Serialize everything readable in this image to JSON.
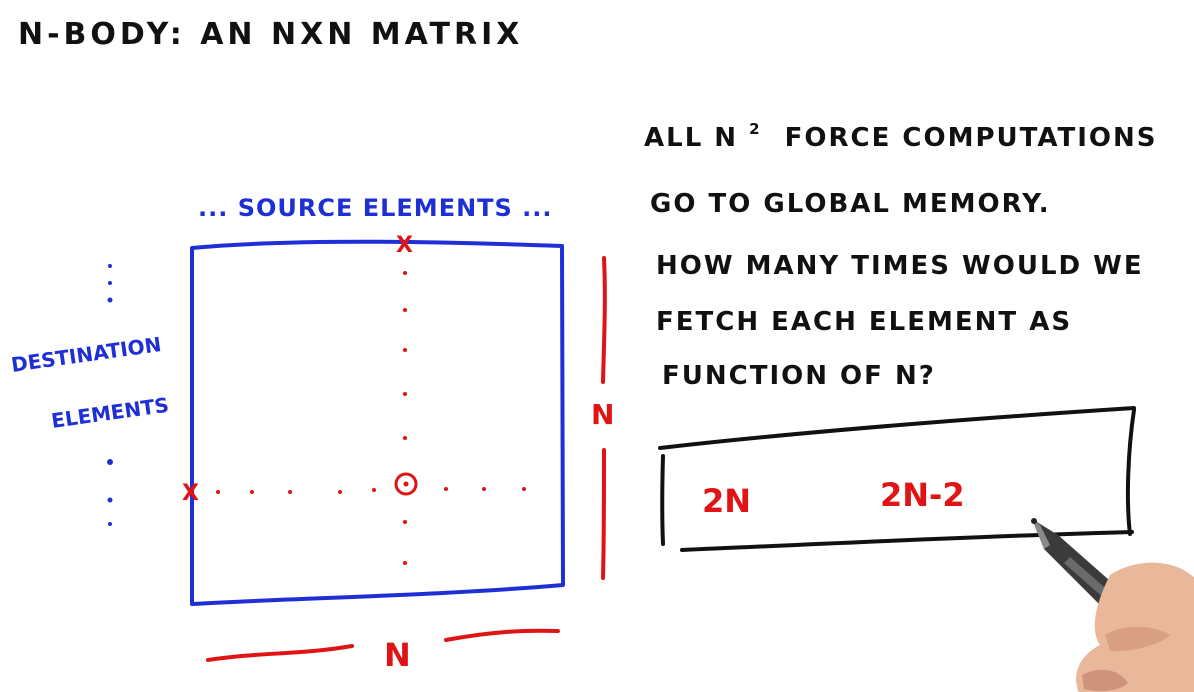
{
  "title": "N-BODY: AN NXN MATRIX",
  "matrix": {
    "top_label": "... SOURCE ELEMENTS ...",
    "left_label_line1": "DESTINATION",
    "left_label_line2": "ELEMENTS",
    "right_label": "N",
    "bottom_label": "N",
    "source_marker": "x",
    "dest_marker": "x"
  },
  "question": {
    "line1_pre": "ALL N",
    "line1_sup": "2",
    "line1_post": "FORCE COMPUTATIONS",
    "line2": "GO TO GLOBAL MEMORY.",
    "line3": "HOW MANY TIMES WOULD WE",
    "line4": "FETCH EACH ELEMENT AS",
    "line5": "FUNCTION OF N?"
  },
  "answers": {
    "option_1": "2N",
    "option_2": "2N-2"
  },
  "colors": {
    "ink_black": "#111111",
    "ink_blue": "#1f2fd6",
    "ink_red": "#e01414"
  }
}
